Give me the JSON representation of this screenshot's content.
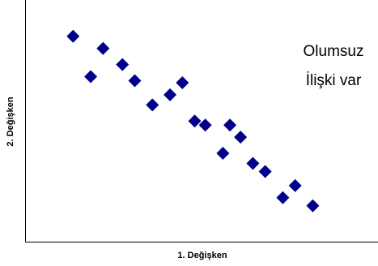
{
  "chart_data": {
    "type": "scatter",
    "xlabel": "1. Değişken",
    "ylabel": "2. Değişken",
    "xlim": [
      0,
      20
    ],
    "ylim": [
      0,
      12
    ],
    "grid": false,
    "legend": "none",
    "marker": "diamond",
    "marker_color": "#00008B",
    "annotation": [
      "Olumsuz",
      "İlişki var"
    ],
    "series": [
      {
        "points": [
          {
            "x": 2.7,
            "y": 10.2
          },
          {
            "x": 3.7,
            "y": 8.2
          },
          {
            "x": 4.4,
            "y": 9.6
          },
          {
            "x": 5.5,
            "y": 8.8
          },
          {
            "x": 6.2,
            "y": 8.0
          },
          {
            "x": 7.2,
            "y": 6.8
          },
          {
            "x": 8.2,
            "y": 7.3
          },
          {
            "x": 8.9,
            "y": 7.9
          },
          {
            "x": 9.6,
            "y": 6.0
          },
          {
            "x": 10.2,
            "y": 5.8
          },
          {
            "x": 11.2,
            "y": 4.4
          },
          {
            "x": 11.6,
            "y": 5.8
          },
          {
            "x": 12.2,
            "y": 5.2
          },
          {
            "x": 12.9,
            "y": 3.9
          },
          {
            "x": 13.6,
            "y": 3.5
          },
          {
            "x": 14.6,
            "y": 2.2
          },
          {
            "x": 15.3,
            "y": 2.8
          },
          {
            "x": 16.3,
            "y": 1.8
          }
        ]
      }
    ]
  }
}
